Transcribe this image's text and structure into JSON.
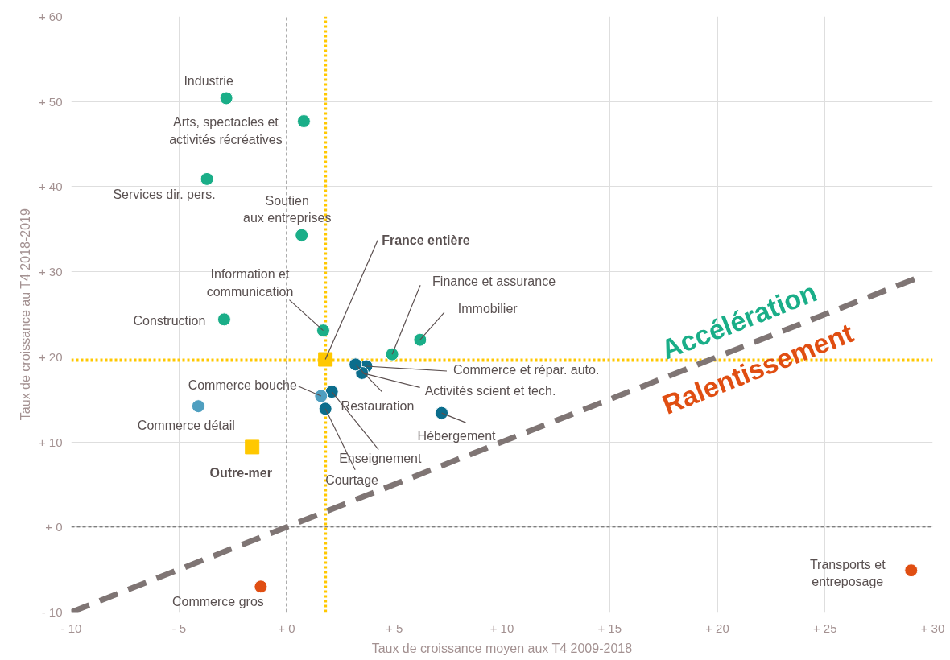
{
  "chart_data": {
    "type": "scatter",
    "xlabel": "Taux de croissance moyen aux T4 2009-2018",
    "ylabel": "Taux de croissance au T4 2018-2019",
    "xlim": [
      -10,
      30
    ],
    "ylim": [
      -10,
      60
    ],
    "xticks": [
      {
        "value": -10,
        "label": "- 10"
      },
      {
        "value": -5,
        "label": "- 5"
      },
      {
        "value": 0,
        "label": "+ 0"
      },
      {
        "value": 5,
        "label": "+ 5"
      },
      {
        "value": 10,
        "label": "+ 10"
      },
      {
        "value": 15,
        "label": "+ 15"
      },
      {
        "value": 20,
        "label": "+ 20"
      },
      {
        "value": 25,
        "label": "+ 25"
      },
      {
        "value": 30,
        "label": "+ 30"
      }
    ],
    "yticks": [
      {
        "value": -10,
        "label": "- 10"
      },
      {
        "value": 0,
        "label": "+ 0"
      },
      {
        "value": 10,
        "label": "+ 10"
      },
      {
        "value": 20,
        "label": "+ 20"
      },
      {
        "value": 30,
        "label": "+ 30"
      },
      {
        "value": 40,
        "label": "+ 40"
      },
      {
        "value": 50,
        "label": "+ 50"
      },
      {
        "value": 60,
        "label": "+ 60"
      }
    ],
    "grid": true,
    "marker": "circle",
    "series": [
      {
        "color": "#1aae88",
        "x": [
          -2.8,
          0.8,
          -3.7,
          0.7,
          1.7,
          -2.9,
          4.9,
          6.2
        ],
        "values": [
          50.4,
          47.7,
          40.9,
          34.3,
          23.1,
          24.4,
          20.3,
          22.0
        ],
        "value_labels": [
          "Industrie",
          "Arts, spectacles et\nactivités récréatives",
          "Services dir. pers.",
          "Soutien\naux entreprises",
          "Information et\ncommunication",
          "Construction",
          "Finance et assurance",
          "Immobilier"
        ]
      },
      {
        "color": "#0b6d8c",
        "colors": [
          "#0b6d8c",
          "#0b6d8c",
          "#0b6d8c",
          "#0b6d8c",
          "#0b6d8c",
          "#0b6d8c",
          "#4f9fc0",
          "#4f9fc0"
        ],
        "x": [
          3.7,
          3.5,
          3.2,
          2.1,
          1.8,
          7.2,
          1.6,
          -4.1
        ],
        "values": [
          18.9,
          18.1,
          19.1,
          15.9,
          13.9,
          13.4,
          15.4,
          14.2
        ],
        "value_labels": [
          "Commerce et répar. auto.",
          "Activités scient et tech.",
          "Restauration",
          "Enseignement",
          "Courtage",
          "Hébergement",
          "Commerce bouche",
          "Commerce détail"
        ]
      },
      {
        "color": "#e04e12",
        "x": [
          -1.2,
          29.0
        ],
        "values": [
          -7.0,
          -5.1
        ],
        "value_labels": [
          "Commerce gros",
          "Transports et\nentreposage"
        ]
      },
      {
        "color": "#ffc800",
        "marker": "square",
        "x": [
          1.8,
          -1.6
        ],
        "values": [
          19.7,
          9.4
        ],
        "value_labels": [
          "France entière",
          "Outre-mer"
        ]
      },
      {
        "type": "line",
        "color": "#7f7574",
        "line_style": "dashed",
        "marker": "none",
        "x": [
          -10,
          29.3
        ],
        "values": [
          -10,
          29.3
        ]
      }
    ],
    "ref_lines": [
      {
        "axis": "x",
        "value": 1.8,
        "color": "#ffc800",
        "line_style": "dotted"
      },
      {
        "axis": "y",
        "value": 19.6,
        "color": "#ffc800",
        "line_style": "dotted"
      }
    ],
    "annotations": [
      "Accélération",
      "Ralentissement"
    ]
  }
}
